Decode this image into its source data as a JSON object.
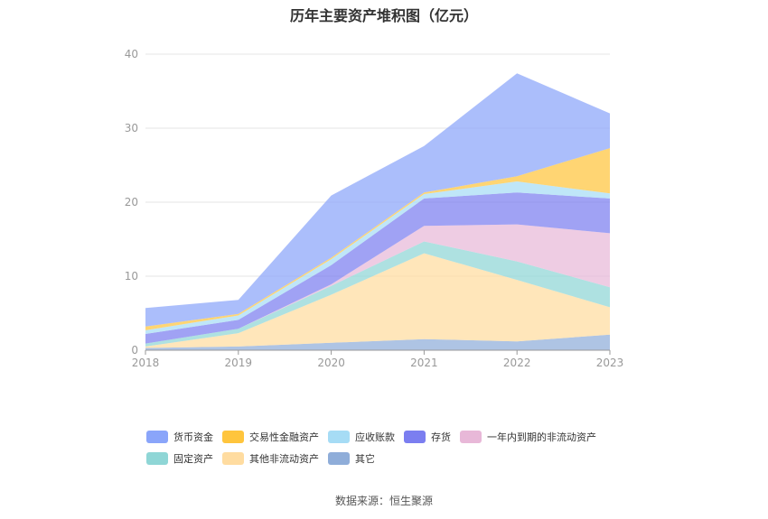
{
  "chart_data": {
    "type": "area",
    "stacked": true,
    "title": "历年主要资产堆积图（亿元）",
    "categories": [
      "2018",
      "2019",
      "2020",
      "2021",
      "2022",
      "2023"
    ],
    "ylim": [
      0,
      40
    ],
    "yticks": [
      0,
      10,
      20,
      30,
      40
    ],
    "grid": true,
    "legend_position": "bottom",
    "series": [
      {
        "name": "其它",
        "color": "#8fadd9",
        "values": [
          0.3,
          0.5,
          1.0,
          1.5,
          1.2,
          2.1
        ]
      },
      {
        "name": "其他非流动资产",
        "color": "#ffdca0",
        "values": [
          0.2,
          1.8,
          6.5,
          11.6,
          8.3,
          3.7
        ]
      },
      {
        "name": "固定资产",
        "color": "#8fd6d6",
        "values": [
          0.4,
          0.6,
          1.2,
          1.6,
          2.5,
          2.7
        ]
      },
      {
        "name": "一年内到期的非流动资产",
        "color": "#e8b8d8",
        "values": [
          0.0,
          0.0,
          0.2,
          2.1,
          5.0,
          7.3
        ]
      },
      {
        "name": "存货",
        "color": "#7b7ef0",
        "values": [
          1.3,
          1.2,
          2.6,
          3.7,
          4.3,
          4.7
        ]
      },
      {
        "name": "应收账款",
        "color": "#a6dcf5",
        "values": [
          0.5,
          0.6,
          0.8,
          0.6,
          1.5,
          0.7
        ]
      },
      {
        "name": "交易性金融资产",
        "color": "#ffc53d",
        "values": [
          0.5,
          0.2,
          0.2,
          0.2,
          0.7,
          6.1
        ]
      },
      {
        "name": "货币资金",
        "color": "#8aa5fa",
        "values": [
          2.5,
          1.9,
          8.4,
          6.3,
          13.9,
          4.7
        ]
      }
    ],
    "legend_order": [
      "货币资金",
      "交易性金融资产",
      "应收账款",
      "存货",
      "一年内到期的非流动资产",
      "固定资产",
      "其他非流动资产",
      "其它"
    ]
  },
  "footer": {
    "source": "数据来源：恒生聚源"
  }
}
